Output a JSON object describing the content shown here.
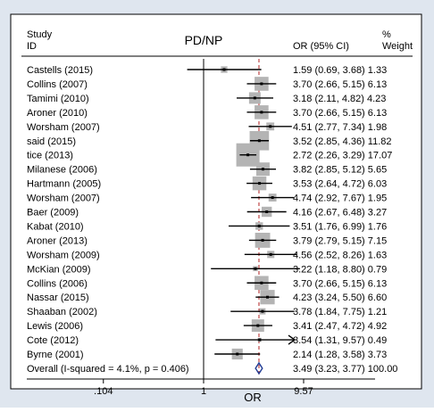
{
  "chart_data": {
    "type": "forest",
    "title": "PD/NP",
    "header": {
      "study_line1": "Study",
      "study_line2": "ID",
      "or_col": "OR (95% CI)",
      "weight_line1": "%",
      "weight_line2": "Weight"
    },
    "xlabel": "OR",
    "x_scale": "log",
    "xlim": [
      0.09,
      14
    ],
    "xticks": [
      {
        "value": 0.104,
        "label": ".104"
      },
      {
        "value": 1,
        "label": "1"
      },
      {
        "value": 9.57,
        "label": "9.57"
      }
    ],
    "null_line": 1,
    "pooled_line": 3.49,
    "studies": [
      {
        "label": "Castells (2015)",
        "or": 1.59,
        "lo": 0.69,
        "hi": 3.68,
        "weight": 1.33,
        "text": "1.59 (0.69, 3.68) 1.33"
      },
      {
        "label": "Collins (2007)",
        "or": 3.7,
        "lo": 2.66,
        "hi": 5.15,
        "weight": 6.13,
        "text": "3.70 (2.66, 5.15) 6.13"
      },
      {
        "label": "Tamimi (2010)",
        "or": 3.18,
        "lo": 2.11,
        "hi": 4.82,
        "weight": 4.23,
        "text": "3.18 (2.11, 4.82) 4.23"
      },
      {
        "label": "Aroner (2010)",
        "or": 3.7,
        "lo": 2.66,
        "hi": 5.15,
        "weight": 6.13,
        "text": "3.70 (2.66, 5.15) 6.13"
      },
      {
        "label": "Worsham (2007)",
        "or": 4.51,
        "lo": 2.77,
        "hi": 7.34,
        "weight": 1.98,
        "text": "4.51 (2.77, 7.34) 1.98"
      },
      {
        "label": "said (2015)",
        "or": 3.52,
        "lo": 2.85,
        "hi": 4.36,
        "weight": 11.82,
        "text": "3.52 (2.85, 4.36) 11.82"
      },
      {
        "label": "tice (2013)",
        "or": 2.72,
        "lo": 2.26,
        "hi": 3.29,
        "weight": 17.07,
        "text": "2.72 (2.26, 3.29) 17.07"
      },
      {
        "label": "Milanese (2006)",
        "or": 3.82,
        "lo": 2.85,
        "hi": 5.12,
        "weight": 5.65,
        "text": "3.82 (2.85, 5.12) 5.65"
      },
      {
        "label": "Hartmann (2005)",
        "or": 3.53,
        "lo": 2.64,
        "hi": 4.72,
        "weight": 6.03,
        "text": "3.53 (2.64, 4.72) 6.03"
      },
      {
        "label": "Worsham (2007)",
        "or": 4.74,
        "lo": 2.92,
        "hi": 7.67,
        "weight": 1.95,
        "text": "4.74 (2.92, 7.67) 1.95"
      },
      {
        "label": "Baer (2009)",
        "or": 4.16,
        "lo": 2.67,
        "hi": 6.48,
        "weight": 3.27,
        "text": "4.16 (2.67, 6.48) 3.27"
      },
      {
        "label": "Kabat (2010)",
        "or": 3.51,
        "lo": 1.76,
        "hi": 6.99,
        "weight": 1.76,
        "text": "3.51 (1.76, 6.99) 1.76"
      },
      {
        "label": "Aroner (2013)",
        "or": 3.79,
        "lo": 2.79,
        "hi": 5.15,
        "weight": 7.15,
        "text": "3.79 (2.79, 5.15) 7.15"
      },
      {
        "label": "Worsham (2009)",
        "or": 4.56,
        "lo": 2.52,
        "hi": 8.26,
        "weight": 1.63,
        "text": "4.56 (2.52, 8.26) 1.63"
      },
      {
        "label": "McKian (2009)",
        "or": 3.22,
        "lo": 1.18,
        "hi": 8.8,
        "weight": 0.79,
        "text": "3.22 (1.18, 8.80) 0.79"
      },
      {
        "label": "Collins (2006)",
        "or": 3.7,
        "lo": 2.66,
        "hi": 5.15,
        "weight": 6.13,
        "text": "3.70 (2.66, 5.15) 6.13"
      },
      {
        "label": "Nassar (2015)",
        "or": 4.23,
        "lo": 3.24,
        "hi": 5.5,
        "weight": 6.6,
        "text": "4.23 (3.24, 5.50) 6.60"
      },
      {
        "label": "Shaaban (2002)",
        "or": 3.78,
        "lo": 1.84,
        "hi": 7.75,
        "weight": 1.21,
        "text": "3.78 (1.84, 7.75) 1.21"
      },
      {
        "label": "Lewis (2006)",
        "or": 3.41,
        "lo": 2.47,
        "hi": 4.72,
        "weight": 4.92,
        "text": "3.41 (2.47, 4.72) 4.92"
      },
      {
        "label": "Cote (2012)",
        "or": 3.54,
        "lo": 1.31,
        "hi": 9.57,
        "weight": 0.49,
        "text": "3.54 (1.31, 9.57) 0.49",
        "arrow_right": true
      },
      {
        "label": "Byrne (2001)",
        "or": 2.14,
        "lo": 1.28,
        "hi": 3.58,
        "weight": 3.73,
        "text": "2.14 (1.28, 3.58) 3.73"
      }
    ],
    "overall": {
      "label": "Overall  (I-squared = 4.1%, p = 0.406)",
      "or": 3.49,
      "lo": 3.23,
      "hi": 3.77,
      "weight": 100.0,
      "text": "3.49 (3.23, 3.77) 100.00"
    },
    "colors": {
      "box": "#b4b4b4",
      "line": "#000000",
      "null_line": "#000000",
      "pooled_line": "#b22222",
      "diamond": "#1f3a93",
      "frame": "#000000",
      "plot_bg": "#ffffff",
      "outer_bg": "#dfe6ef"
    }
  }
}
